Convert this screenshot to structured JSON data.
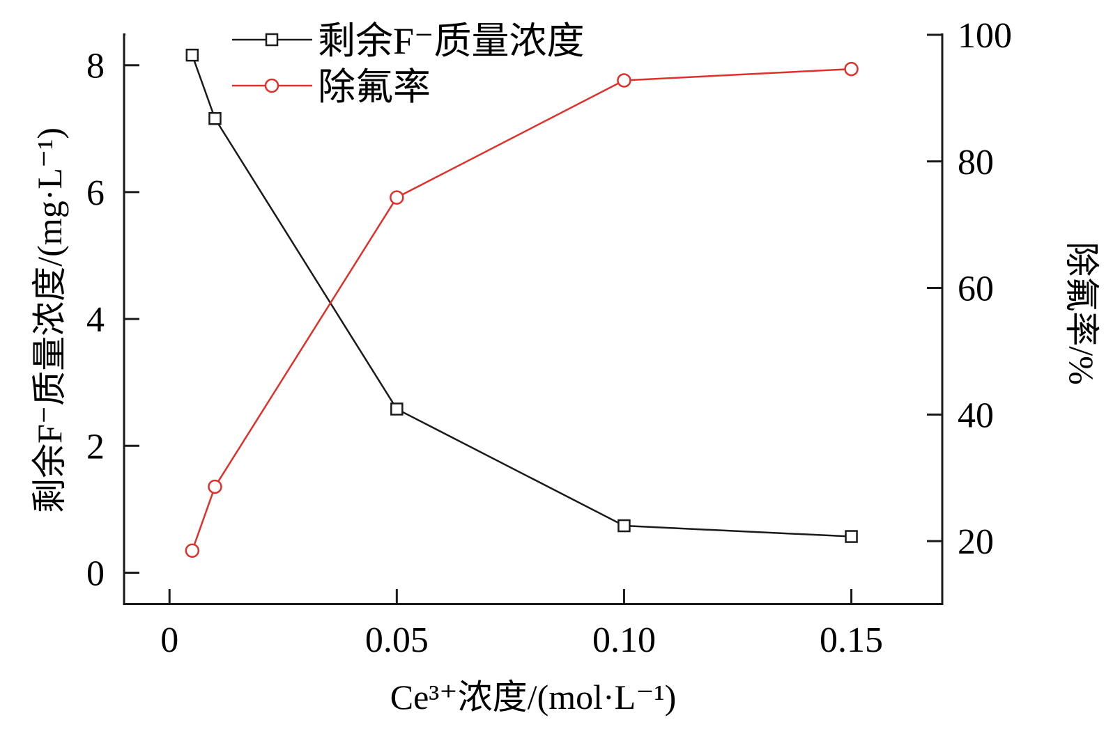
{
  "chart_data": {
    "type": "line",
    "xlabel": "Ce³⁺浓度/(mol·L⁻¹)",
    "ylabel": "剩余F⁻质量浓度/(mg·L⁻¹)",
    "y2label": "除氟率/%",
    "xlim": [
      -0.01,
      0.17
    ],
    "ylim": [
      -0.5,
      8.48
    ],
    "y2lim": [
      10,
      100
    ],
    "xticks": [
      0,
      0.05,
      0.1,
      0.15
    ],
    "xtick_labels": [
      "0",
      "0.05",
      "0.10",
      "0.15"
    ],
    "yticks": [
      0,
      2,
      4,
      6,
      8
    ],
    "ytick_labels": [
      "0",
      "2",
      "4",
      "6",
      "8"
    ],
    "y2ticks": [
      20,
      40,
      60,
      80,
      100
    ],
    "y2tick_labels": [
      "20",
      "40",
      "60",
      "80",
      "100"
    ],
    "grid": false,
    "legend_position": "top-left",
    "series": [
      {
        "name": "剩余F⁻质量浓度",
        "axis": "left",
        "marker": "square",
        "color": "#1a1a1a",
        "x": [
          0.005,
          0.01,
          0.05,
          0.1,
          0.15
        ],
        "y": [
          8.16,
          7.16,
          2.58,
          0.74,
          0.57
        ]
      },
      {
        "name": "除氟率",
        "axis": "right",
        "marker": "circle",
        "color": "#e0302a",
        "x": [
          0.005,
          0.01,
          0.05,
          0.1,
          0.15
        ],
        "y": [
          18.5,
          28.6,
          74.3,
          92.8,
          94.6
        ]
      }
    ]
  }
}
